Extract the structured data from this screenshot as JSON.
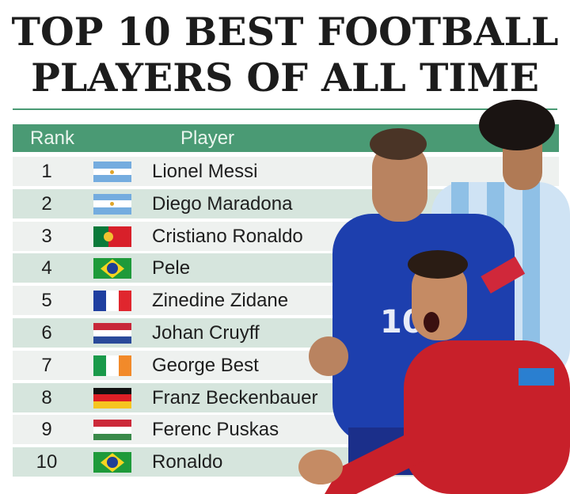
{
  "title": {
    "line1": "TOP 10 BEST FOOTBALL",
    "line2": "PLAYERS OF ALL TIME"
  },
  "colors": {
    "header": "#4a9a74",
    "row_light": "#eef1ef",
    "row_dark": "#d6e5dd"
  },
  "table": {
    "columns": [
      "Rank",
      "Player"
    ],
    "rows": [
      {
        "rank": "1",
        "flag": "argentina",
        "player": "Lionel Messi"
      },
      {
        "rank": "2",
        "flag": "argentina",
        "player": "Diego Maradona"
      },
      {
        "rank": "3",
        "flag": "portugal",
        "player": "Cristiano Ronaldo"
      },
      {
        "rank": "4",
        "flag": "brazil",
        "player": "Pele"
      },
      {
        "rank": "5",
        "flag": "france",
        "player": "Zinedine Zidane"
      },
      {
        "rank": "6",
        "flag": "netherlands",
        "player": "Johan Cruyff"
      },
      {
        "rank": "7",
        "flag": "ireland",
        "player": "George Best"
      },
      {
        "rank": "8",
        "flag": "germany",
        "player": "Franz Beckenbauer"
      },
      {
        "rank": "9",
        "flag": "hungary",
        "player": "Ferenc Puskas"
      },
      {
        "rank": "10",
        "flag": "brazil",
        "player": "Ronaldo"
      }
    ]
  }
}
